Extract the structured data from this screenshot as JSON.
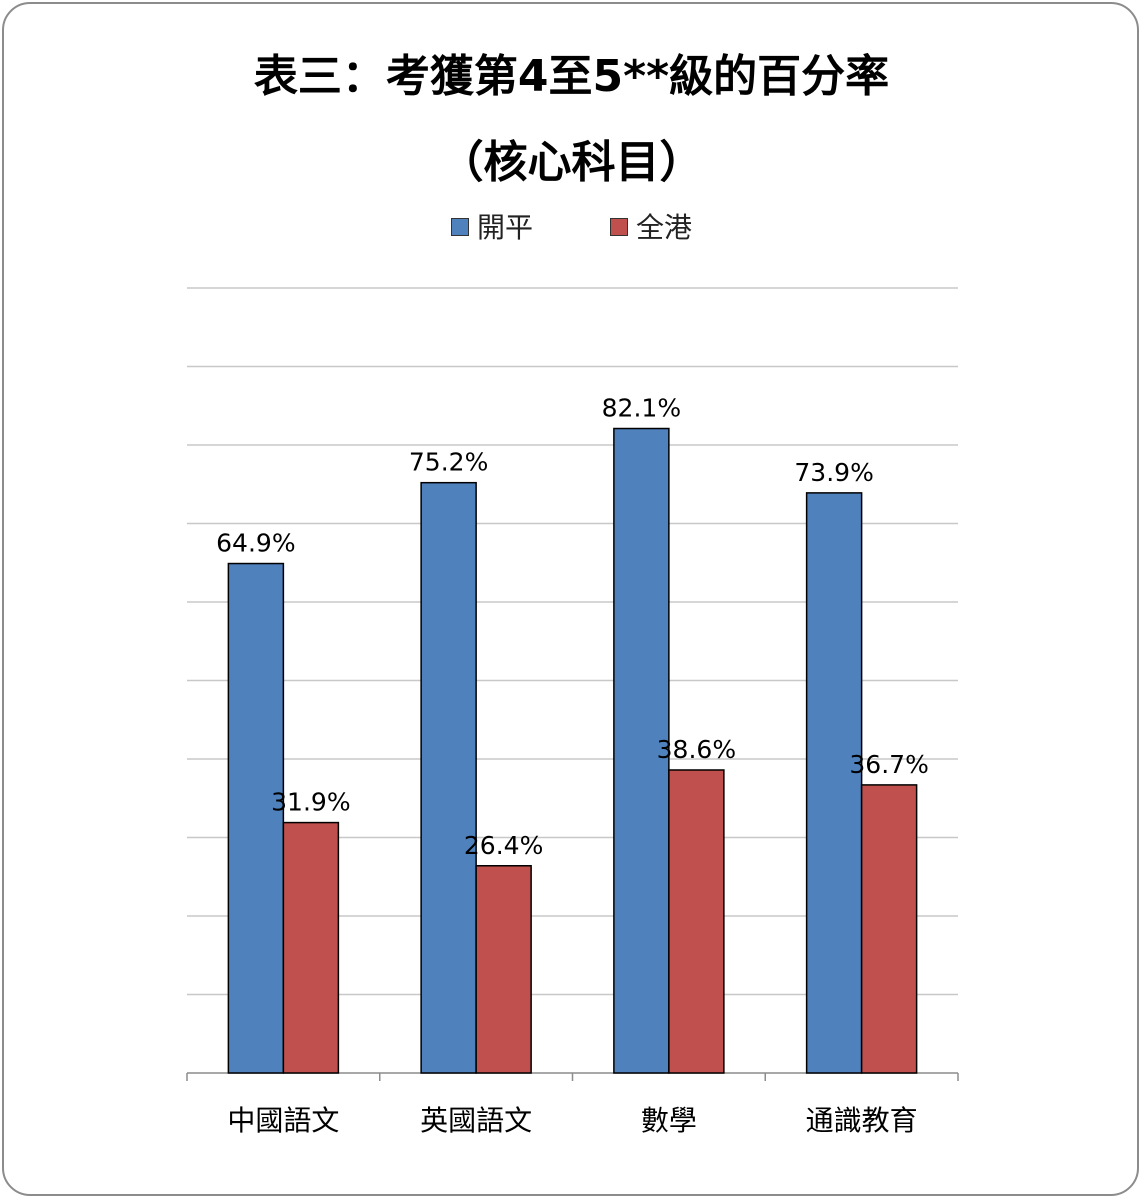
{
  "title_line1": "表三：考獲第4至5**級的百分率",
  "title_line2": "（核心科目）",
  "chart_data": {
    "type": "bar",
    "categories": [
      "中國語文",
      "英國語文",
      "數學",
      "通識教育"
    ],
    "series": [
      {
        "name": "開平",
        "color": "#4f81bd",
        "values": [
          64.9,
          75.2,
          82.1,
          73.9
        ],
        "labels": [
          "64.9%",
          "75.2%",
          "82.1%",
          "73.9%"
        ]
      },
      {
        "name": "全港",
        "color": "#c0504d",
        "values": [
          31.9,
          26.4,
          38.6,
          36.7
        ],
        "labels": [
          "31.9%",
          "26.4%",
          "38.6%",
          "36.7%"
        ]
      }
    ],
    "ylim": [
      0,
      100
    ],
    "grid": true,
    "legend": "top-center"
  }
}
